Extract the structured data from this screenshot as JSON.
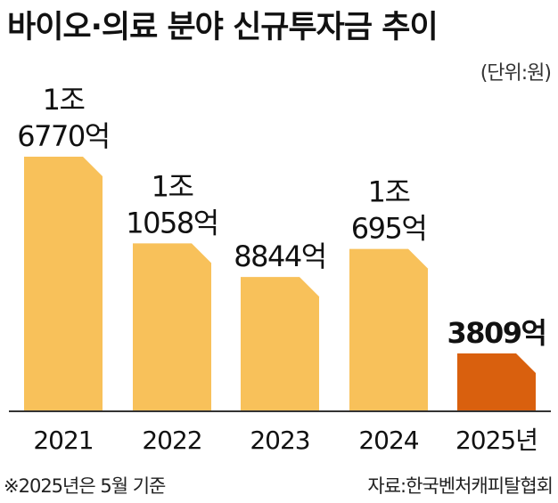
{
  "title": "바이오·의료 분야 신규투자금 추이",
  "unit_label": "(단위:원)",
  "note": "※2025년은 5월 기준",
  "source": "자료:한국벤처캐피탈협회",
  "colors": {
    "bar": "#F8C15A",
    "highlight_bar": "#D9600E",
    "axis": "#333333"
  },
  "chart_data": {
    "type": "bar",
    "title": "바이오·의료 분야 신규투자금 추이",
    "unit": "(단위:원)",
    "categories": [
      "2021",
      "2022",
      "2023",
      "2024",
      "2025년"
    ],
    "values": [
      16770,
      11058,
      8844,
      10695,
      3809
    ],
    "value_unit": "억",
    "data_labels": [
      [
        "1조",
        "6770억"
      ],
      [
        "1조",
        "1058억"
      ],
      [
        "8844억"
      ],
      [
        "1조",
        "695억"
      ],
      [
        "3809억"
      ]
    ],
    "highlight_index": 4,
    "ylim": [
      0,
      16770
    ],
    "grid": false,
    "legend": "none"
  }
}
